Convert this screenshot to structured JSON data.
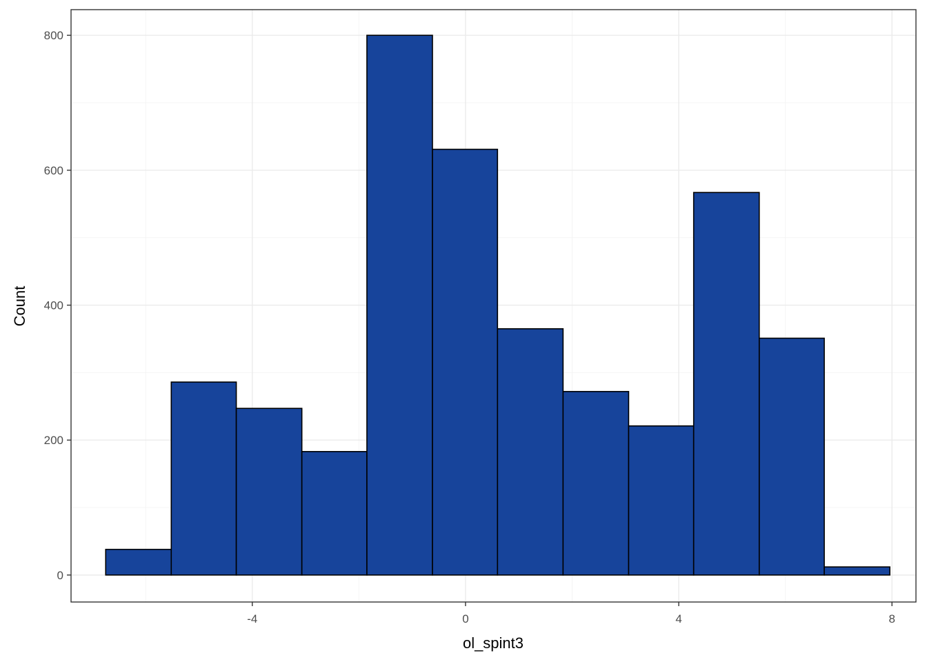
{
  "chart_data": {
    "type": "bar",
    "subtype": "histogram",
    "xlabel": "ol_spint3",
    "ylabel": "Count",
    "xlim": [
      -7.4,
      8.45
    ],
    "ylim": [
      -40,
      838
    ],
    "x_ticks": [
      -4,
      0,
      4,
      8
    ],
    "x_tick_labels": [
      "-4",
      "0",
      "4",
      "8"
    ],
    "y_ticks": [
      0,
      200,
      400,
      600,
      800
    ],
    "y_tick_labels": [
      "0",
      "200",
      "400",
      "600",
      "800"
    ],
    "y_minor_ticks": [
      100,
      300,
      500,
      700
    ],
    "x_minor_ticks": [
      -6,
      -2,
      2,
      6
    ],
    "grid": true,
    "legend": "none",
    "bins": [
      {
        "x0": -6.75,
        "x1": -5.52,
        "count": 38
      },
      {
        "x0": -5.52,
        "x1": -4.3,
        "count": 286
      },
      {
        "x0": -4.3,
        "x1": -3.07,
        "count": 247
      },
      {
        "x0": -3.07,
        "x1": -1.85,
        "count": 183
      },
      {
        "x0": -1.85,
        "x1": -0.62,
        "count": 800
      },
      {
        "x0": -0.62,
        "x1": 0.6,
        "count": 631
      },
      {
        "x0": 0.6,
        "x1": 1.83,
        "count": 365
      },
      {
        "x0": 1.83,
        "x1": 3.06,
        "count": 272
      },
      {
        "x0": 3.06,
        "x1": 4.28,
        "count": 221
      },
      {
        "x0": 4.28,
        "x1": 5.51,
        "count": 567
      },
      {
        "x0": 5.51,
        "x1": 6.73,
        "count": 351
      },
      {
        "x0": 6.73,
        "x1": 7.96,
        "count": 12
      }
    ]
  },
  "colors": {
    "bar_fill": "#17449b",
    "bar_stroke": "#000000",
    "panel_border": "#333333",
    "grid_major": "#ebebeb",
    "grid_minor": "#f4f4f4",
    "tick_label": "#4d4d4d",
    "axis_title": "#000000"
  }
}
